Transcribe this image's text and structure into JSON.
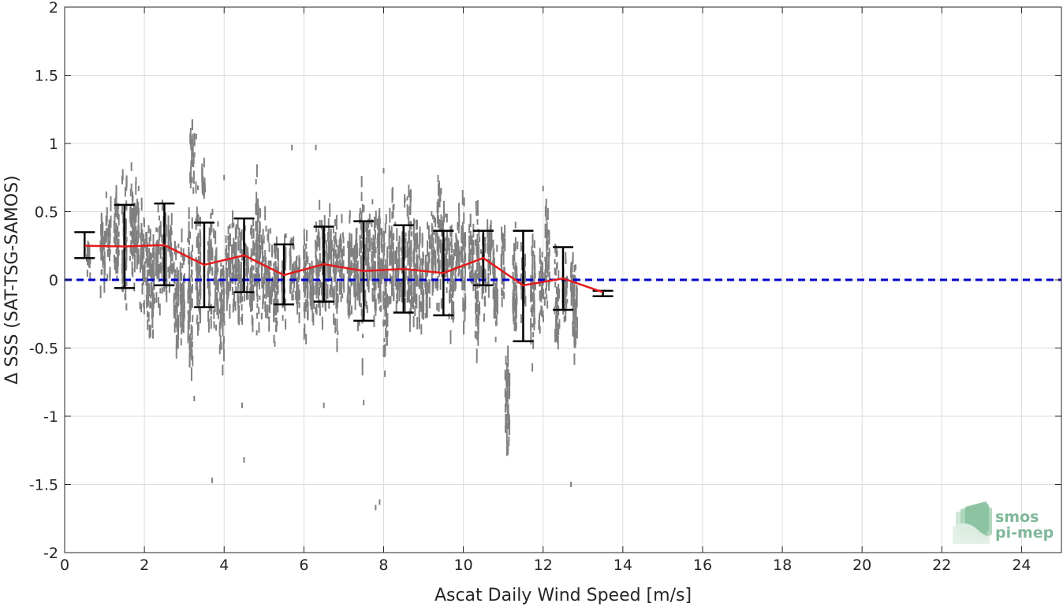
{
  "chart_data": {
    "type": "scatter",
    "title": "",
    "xlabel": "Ascat Daily Wind Speed [m/s]",
    "ylabel": "Δ SSS (SAT-TSG-SAMOS)",
    "xlim": [
      0,
      25
    ],
    "ylim": [
      -2,
      2
    ],
    "xticks": [
      0,
      2,
      4,
      6,
      8,
      10,
      12,
      14,
      16,
      18,
      20,
      22,
      24
    ],
    "yticks": [
      -2,
      -1.5,
      -1,
      -0.5,
      0,
      0.5,
      1,
      1.5,
      2
    ],
    "ytick_labels": [
      "-2",
      "-1.5",
      "-1",
      "-0.5",
      "0",
      "0.5",
      "1",
      "1.5",
      "2"
    ],
    "grid": true,
    "reference_line": {
      "y": 0,
      "color": "#0000cc",
      "style": "dashed"
    },
    "mean_line": {
      "color": "#e41a1c",
      "x": [
        0.5,
        1.5,
        2.5,
        3.5,
        4.5,
        5.5,
        6.5,
        7.5,
        8.5,
        9.5,
        10.5,
        11.5,
        12.5,
        13.5
      ],
      "y": [
        0.25,
        0.245,
        0.255,
        0.11,
        0.18,
        0.035,
        0.115,
        0.065,
        0.08,
        0.05,
        0.16,
        -0.04,
        0.01,
        -0.09
      ]
    },
    "error_bars": {
      "color": "#000000",
      "x": [
        0.5,
        1.5,
        2.5,
        3.5,
        4.5,
        5.5,
        6.5,
        7.5,
        8.5,
        9.5,
        10.5,
        11.5,
        12.5,
        13.5
      ],
      "lower": [
        0.16,
        -0.06,
        -0.04,
        -0.2,
        -0.09,
        -0.18,
        -0.16,
        -0.3,
        -0.24,
        -0.26,
        -0.04,
        -0.45,
        -0.22,
        -0.12
      ],
      "upper": [
        0.35,
        0.55,
        0.56,
        0.42,
        0.45,
        0.26,
        0.39,
        0.43,
        0.4,
        0.36,
        0.36,
        0.36,
        0.24,
        -0.08
      ]
    },
    "scatter_color": "#808080",
    "scatter_columns": [
      [
        0.6,
        -0.05,
        0.35
      ],
      [
        0.95,
        -0.15,
        0.55
      ],
      [
        1.1,
        -0.05,
        0.7
      ],
      [
        1.3,
        -0.2,
        0.8
      ],
      [
        1.5,
        -0.3,
        0.9
      ],
      [
        1.7,
        -0.15,
        0.85
      ],
      [
        1.8,
        -0.1,
        0.9
      ],
      [
        1.95,
        -0.3,
        0.6
      ],
      [
        2.1,
        -0.5,
        0.55
      ],
      [
        2.2,
        -0.45,
        0.45
      ],
      [
        2.35,
        -0.25,
        0.55
      ],
      [
        2.5,
        -0.35,
        0.65
      ],
      [
        2.65,
        -0.15,
        0.5
      ],
      [
        2.8,
        -0.75,
        0.35
      ],
      [
        2.95,
        -0.6,
        0.45
      ],
      [
        3.15,
        -0.85,
        0.65
      ],
      [
        3.2,
        0.6,
        1.15
      ],
      [
        3.35,
        -0.6,
        0.75
      ],
      [
        3.5,
        0.6,
        0.9
      ],
      [
        3.65,
        -0.4,
        0.55
      ],
      [
        3.8,
        -0.45,
        0.45
      ],
      [
        3.95,
        -0.7,
        0.35
      ],
      [
        4.1,
        -0.35,
        0.55
      ],
      [
        4.25,
        -0.35,
        0.65
      ],
      [
        4.4,
        -0.55,
        0.6
      ],
      [
        4.55,
        -0.3,
        0.45
      ],
      [
        4.7,
        -0.45,
        0.55
      ],
      [
        4.85,
        -0.5,
        0.8
      ],
      [
        5.0,
        -0.35,
        0.55
      ],
      [
        5.15,
        -0.45,
        0.4
      ],
      [
        5.3,
        -0.6,
        0.5
      ],
      [
        5.5,
        -0.4,
        0.35
      ],
      [
        5.7,
        -0.2,
        0.45
      ],
      [
        5.85,
        -0.35,
        0.3
      ],
      [
        6.05,
        -0.5,
        0.45
      ],
      [
        6.2,
        -0.45,
        0.3
      ],
      [
        6.35,
        -0.55,
        0.55
      ],
      [
        6.5,
        -0.4,
        0.6
      ],
      [
        6.65,
        -0.3,
        0.55
      ],
      [
        6.8,
        -0.55,
        0.5
      ],
      [
        6.95,
        -0.25,
        0.5
      ],
      [
        7.15,
        -0.5,
        0.6
      ],
      [
        7.3,
        -0.45,
        0.55
      ],
      [
        7.45,
        -0.7,
        0.85
      ],
      [
        7.6,
        -0.3,
        0.6
      ],
      [
        7.75,
        -0.4,
        0.65
      ],
      [
        7.9,
        -0.45,
        0.75
      ],
      [
        8.05,
        -0.75,
        0.6
      ],
      [
        8.2,
        -0.35,
        0.7
      ],
      [
        8.35,
        -0.25,
        0.5
      ],
      [
        8.5,
        -0.35,
        0.6
      ],
      [
        8.65,
        -0.5,
        0.85
      ],
      [
        8.8,
        -0.45,
        0.7
      ],
      [
        8.95,
        -0.55,
        0.55
      ],
      [
        9.1,
        -0.4,
        0.5
      ],
      [
        9.25,
        -0.25,
        0.65
      ],
      [
        9.4,
        -0.35,
        0.85
      ],
      [
        9.55,
        -0.2,
        0.6
      ],
      [
        9.7,
        -0.5,
        0.5
      ],
      [
        9.85,
        -0.2,
        0.55
      ],
      [
        10.0,
        -0.35,
        0.65
      ],
      [
        10.2,
        -0.15,
        0.55
      ],
      [
        10.35,
        -0.65,
        0.7
      ],
      [
        10.5,
        -0.3,
        0.45
      ],
      [
        10.65,
        -0.15,
        0.55
      ],
      [
        10.8,
        -0.5,
        0.4
      ],
      [
        11.0,
        -0.2,
        0.5
      ],
      [
        11.1,
        -1.5,
        -0.3
      ],
      [
        11.3,
        -0.6,
        0.45
      ],
      [
        11.5,
        -0.4,
        0.35
      ],
      [
        11.75,
        -0.7,
        0.45
      ],
      [
        11.95,
        -0.5,
        0.3
      ],
      [
        12.1,
        -0.3,
        0.65
      ],
      [
        12.35,
        -0.65,
        0.3
      ],
      [
        12.55,
        -0.4,
        0.25
      ],
      [
        12.75,
        -0.3,
        0.3
      ],
      [
        12.8,
        -0.65,
        0.2
      ]
    ],
    "scatter_outliers": [
      [
        3.2,
        1.15
      ],
      [
        5.7,
        0.97
      ],
      [
        6.3,
        0.97
      ],
      [
        3.25,
        -0.87
      ],
      [
        3.7,
        -1.47
      ],
      [
        4.45,
        -0.92
      ],
      [
        4.5,
        -1.32
      ],
      [
        6.5,
        -0.92
      ],
      [
        7.5,
        -0.9
      ],
      [
        7.8,
        -1.67
      ],
      [
        7.9,
        -1.63
      ],
      [
        12.7,
        -1.5
      ],
      [
        3.3,
        1.05
      ],
      [
        4.0,
        0.75
      ],
      [
        4.8,
        0.72
      ],
      [
        8.0,
        0.8
      ],
      [
        12.0,
        0.67
      ]
    ]
  },
  "logo": {
    "line1": "smos",
    "line2": "pi-mep",
    "color": "#7fb899"
  }
}
